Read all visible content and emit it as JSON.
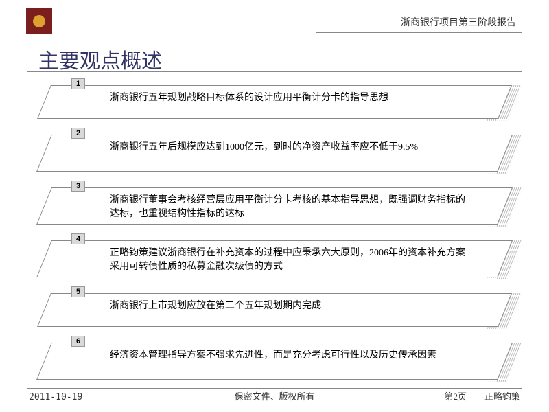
{
  "header": {
    "right_text": "浙商银行项目第三阶段报告"
  },
  "title": "主要观点概述",
  "points": [
    {
      "num": "1",
      "text": "浙商银行五年规划战略目标体系的设计应用平衡计分卡的指导思想",
      "tall": false
    },
    {
      "num": "2",
      "text": "浙商银行五年后规模应达到1000亿元，到时的净资产收益率应不低于9.5%",
      "tall": true
    },
    {
      "num": "3",
      "text": "浙商银行董事会考核经营层应用平衡计分卡考核的基本指导思想，既强调财务指标的达标，也重视结构性指标的达标",
      "tall": true
    },
    {
      "num": "4",
      "text": "正略钧策建议浙商银行在补充资本的过程中应秉承六大原则，2006年的资本补充方案采用可转债性质的私募金融次级债的方式",
      "tall": true
    },
    {
      "num": "5",
      "text": "浙商银行上市规划应放在第二个五年规划期内完成",
      "tall": false
    },
    {
      "num": "6",
      "text": "经济资本管理指导方案不强求先进性，而是充分考虑可行性以及历史传承因素",
      "tall": true
    }
  ],
  "footer": {
    "date": "2011-10-19",
    "center": "保密文件、版权所有",
    "page": "第2页",
    "brand": "正略钧策"
  },
  "colors": {
    "logo_bg": "#7a1e1e",
    "logo_accent": "#e0a030",
    "title_color": "#333366",
    "line_color": "#888888",
    "numbox_bg": "#d9d9d9"
  }
}
